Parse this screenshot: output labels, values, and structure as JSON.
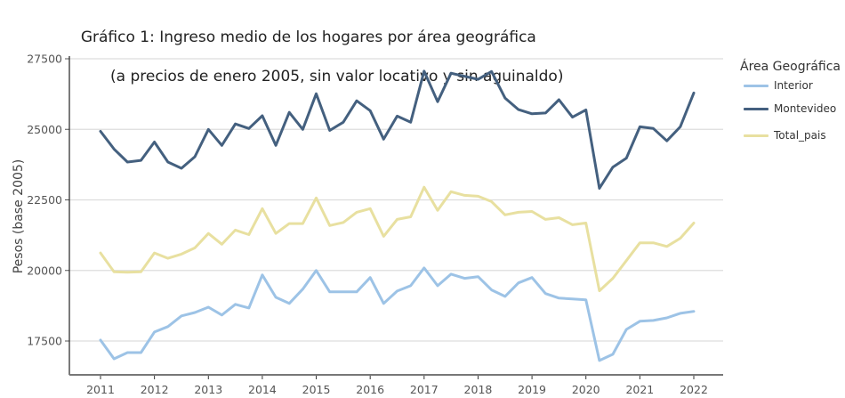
{
  "chart_data": {
    "type": "line",
    "title": "Gráfico 1: Ingreso medio de los hogares por área geográfica",
    "subtitle": "(a precios de enero 2005, sin valor locativo y sin aguinaldo)",
    "xlabel": "",
    "ylabel": "Pesos (base 2005)",
    "xlim": [
      2010.42,
      2022.53
    ],
    "ylim": [
      16250,
      27500
    ],
    "x_ticks": [
      2011,
      2012,
      2013,
      2014,
      2015,
      2016,
      2017,
      2018,
      2019,
      2020,
      2021,
      2022
    ],
    "x_tick_labels": [
      "2011",
      "2012",
      "2013",
      "2014",
      "2015",
      "2016",
      "2017",
      "2018",
      "2019",
      "2020",
      "2021",
      "2022"
    ],
    "y_ticks": [
      17500,
      20000,
      22500,
      25000,
      27500
    ],
    "y_tick_labels": [
      "17500",
      "20000",
      "22500",
      "25000",
      "27500"
    ],
    "grid": "horizontal",
    "legend_title": "Área Geográfica",
    "legend_position": "right",
    "x": [
      2011,
      2011.25,
      2011.5,
      2011.75,
      2012,
      2012.25,
      2012.5,
      2012.75,
      2013,
      2013.25,
      2013.5,
      2013.75,
      2014,
      2014.25,
      2014.5,
      2014.75,
      2015,
      2015.25,
      2015.5,
      2015.75,
      2016,
      2016.25,
      2016.5,
      2016.75,
      2017,
      2017.25,
      2017.5,
      2017.75,
      2018,
      2018.25,
      2018.5,
      2018.75,
      2019,
      2019.25,
      2019.5,
      2019.75,
      2020,
      2020.25,
      2020.5,
      2020.75,
      2021,
      2021.25,
      2021.5,
      2021.75,
      2022
    ],
    "series": [
      {
        "name": "Interior",
        "color": "#9dc3e6",
        "values": [
          17530,
          16870,
          17090,
          17090,
          17820,
          18010,
          18390,
          18510,
          18700,
          18420,
          18800,
          18670,
          19840,
          19050,
          18830,
          19340,
          20000,
          19240,
          19240,
          19240,
          19750,
          18830,
          19270,
          19460,
          20090,
          19460,
          19870,
          19720,
          19780,
          19310,
          19080,
          19560,
          19750,
          19180,
          19020,
          18990,
          18960,
          16810,
          17030,
          17910,
          18200,
          18230,
          18320,
          18480,
          18550
        ]
      },
      {
        "name": "Montevideo",
        "color": "#44607f",
        "values": [
          24930,
          24300,
          23840,
          23900,
          24550,
          23840,
          23620,
          24030,
          25000,
          24430,
          25190,
          25030,
          25480,
          24430,
          25600,
          25000,
          26260,
          24960,
          25250,
          26010,
          25660,
          24650,
          25470,
          25250,
          27060,
          25980,
          26990,
          26880,
          26770,
          27050,
          26110,
          25700,
          25550,
          25580,
          26050,
          25430,
          25690,
          22910,
          23660,
          23980,
          25090,
          25030,
          24590,
          25090,
          26290
        ]
      },
      {
        "name": "Total_pais",
        "color": "#e8e0a0",
        "values": [
          20620,
          19950,
          19940,
          19950,
          20620,
          20430,
          20580,
          20800,
          21310,
          20930,
          21430,
          21270,
          22190,
          21310,
          21660,
          21660,
          22570,
          21590,
          21700,
          22060,
          22190,
          21210,
          21810,
          21900,
          22950,
          22130,
          22790,
          22660,
          22630,
          22440,
          21970,
          22060,
          22090,
          21810,
          21870,
          21620,
          21680,
          19280,
          19720,
          20350,
          20980,
          20980,
          20850,
          21140,
          21680
        ]
      }
    ]
  }
}
